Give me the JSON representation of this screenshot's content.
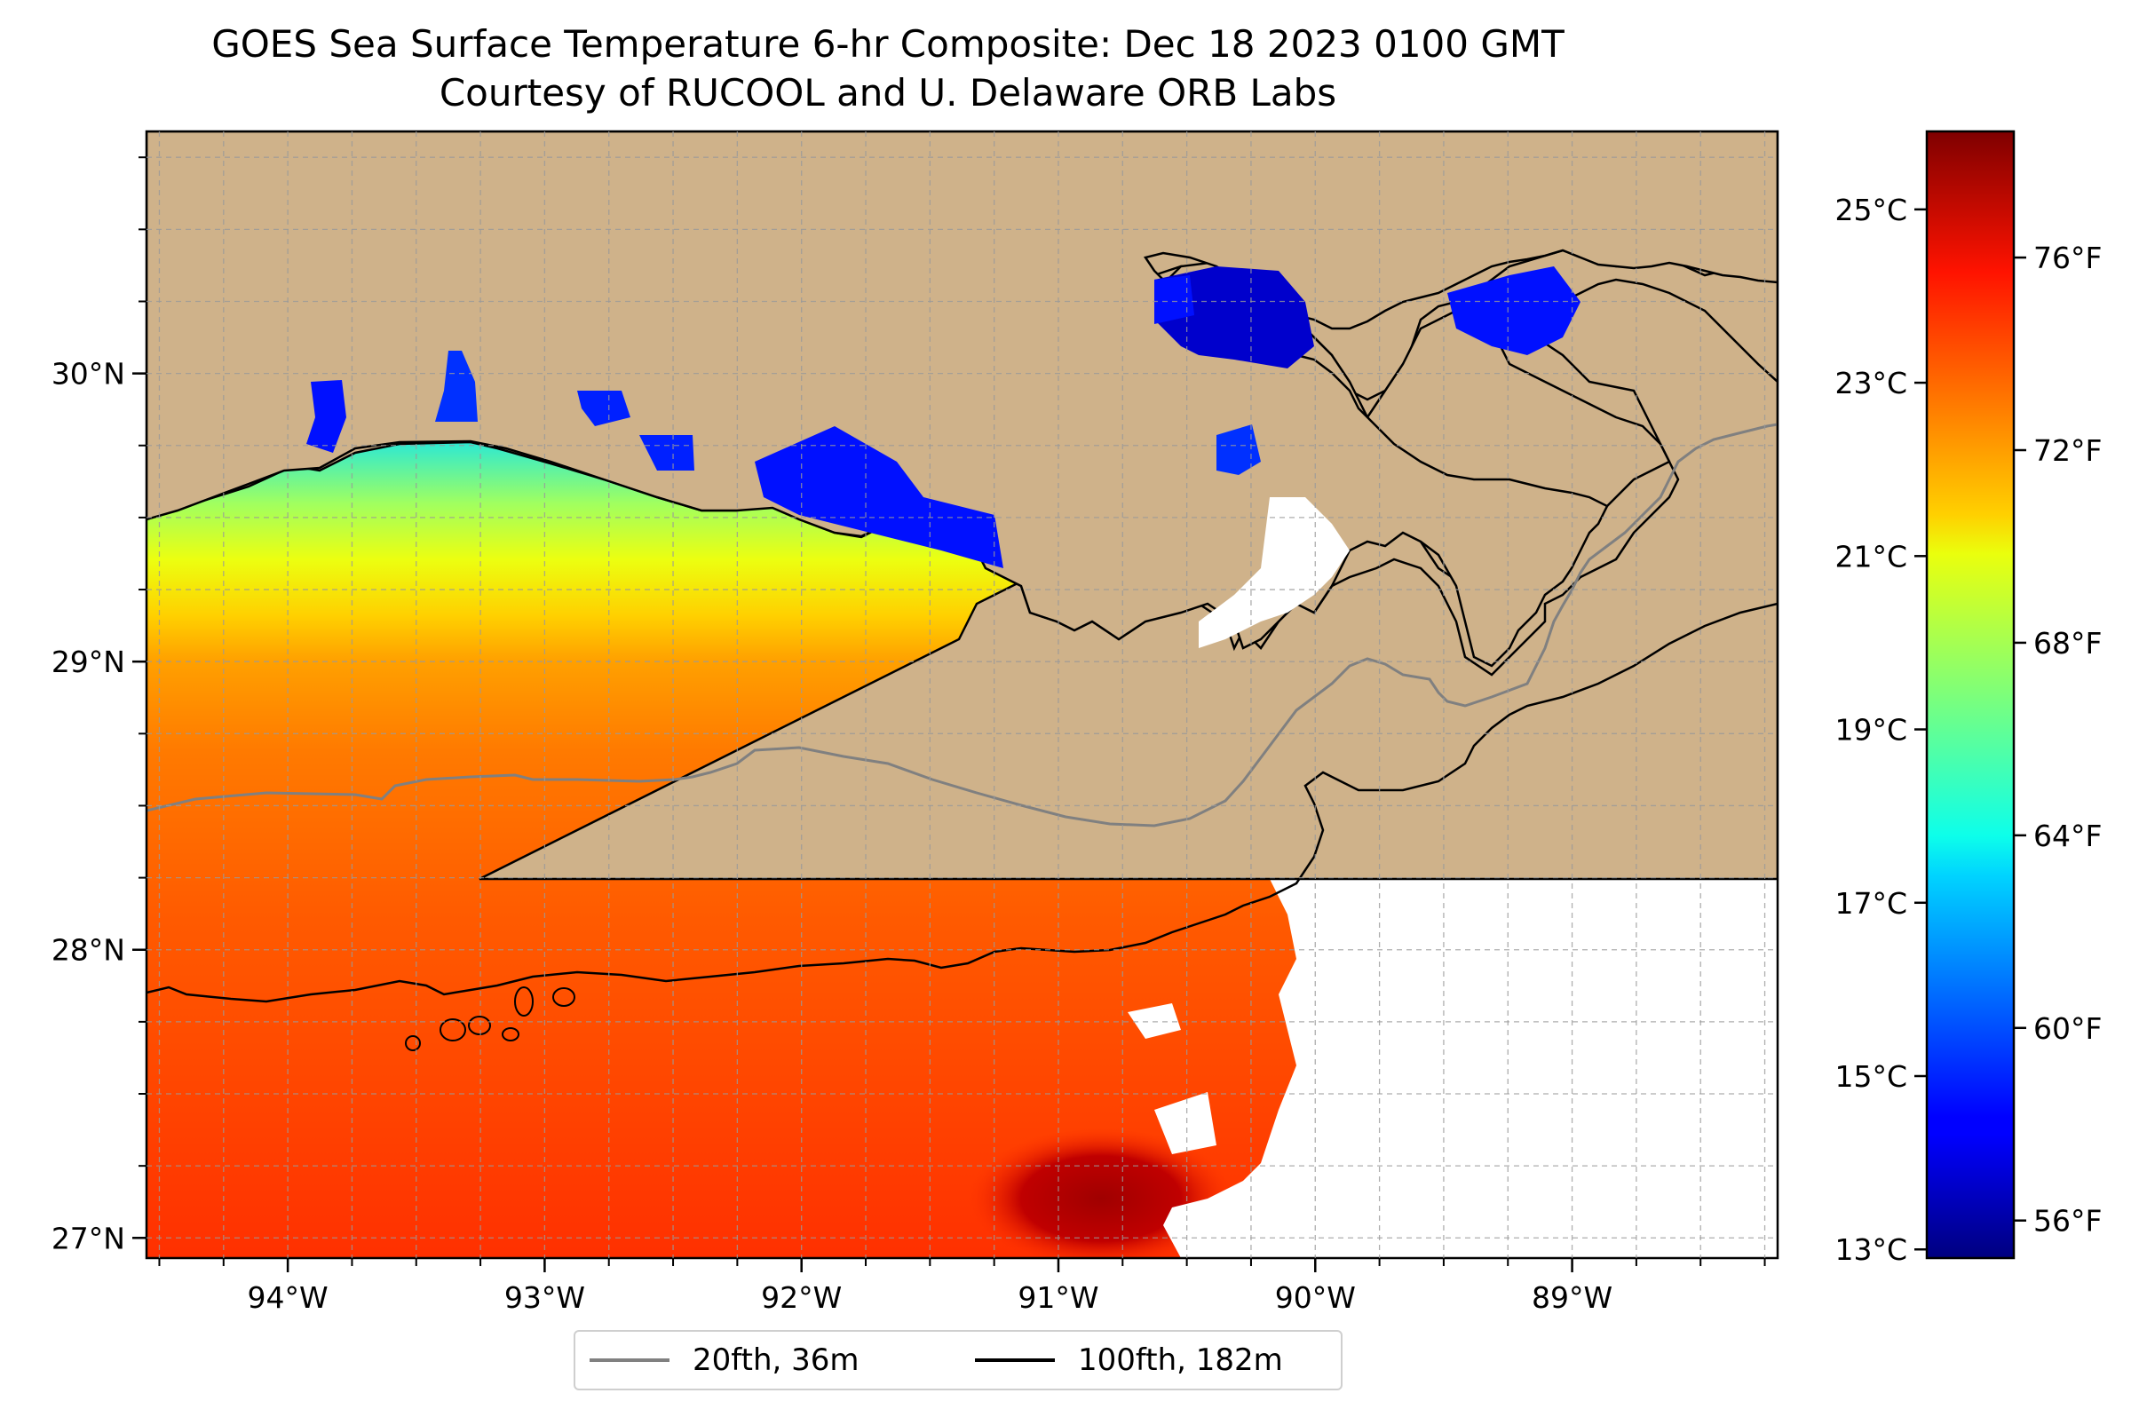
{
  "title": {
    "line1": "GOES Sea Surface Temperature 6-hr Composite: Dec 18 2023 0100 GMT",
    "line2": "Courtesy of RUCOOL and U. Delaware ORB Labs"
  },
  "map": {
    "extent": {
      "lon_min": -94.55,
      "lon_max": -88.2,
      "lat_min": 26.93,
      "lat_max": 30.84
    },
    "lon_ticks": [
      {
        "value": -94,
        "label": "94°W"
      },
      {
        "value": -93,
        "label": "93°W"
      },
      {
        "value": -92,
        "label": "92°W"
      },
      {
        "value": -91,
        "label": "91°W"
      },
      {
        "value": -90,
        "label": "90°W"
      },
      {
        "value": -89,
        "label": "89°W"
      }
    ],
    "lat_ticks": [
      {
        "value": 27,
        "label": "27°N"
      },
      {
        "value": 28,
        "label": "28°N"
      },
      {
        "value": 29,
        "label": "29°N"
      },
      {
        "value": 30,
        "label": "30°N"
      }
    ],
    "gridlines": true,
    "land_color": "#cfb28a",
    "no_data_color": "#ffffff"
  },
  "colorbar": {
    "colormap": "jet",
    "celsius_ticks": [
      {
        "value": 13,
        "label": "13°C"
      },
      {
        "value": 15,
        "label": "15°C"
      },
      {
        "value": 17,
        "label": "17°C"
      },
      {
        "value": 19,
        "label": "19°C"
      },
      {
        "value": 21,
        "label": "21°C"
      },
      {
        "value": 23,
        "label": "23°C"
      },
      {
        "value": 25,
        "label": "25°C"
      }
    ],
    "fahrenheit_ticks": [
      {
        "value": 56,
        "label": "56°F"
      },
      {
        "value": 60,
        "label": "60°F"
      },
      {
        "value": 64,
        "label": "64°F"
      },
      {
        "value": 68,
        "label": "68°F"
      },
      {
        "value": 72,
        "label": "72°F"
      },
      {
        "value": 76,
        "label": "76°F"
      }
    ],
    "range_c": [
      12.9,
      25.9
    ]
  },
  "legend": {
    "items": [
      {
        "label": "20fth, 36m",
        "color": "#808080"
      },
      {
        "label": "100fth, 182m",
        "color": "#000000"
      }
    ]
  }
}
